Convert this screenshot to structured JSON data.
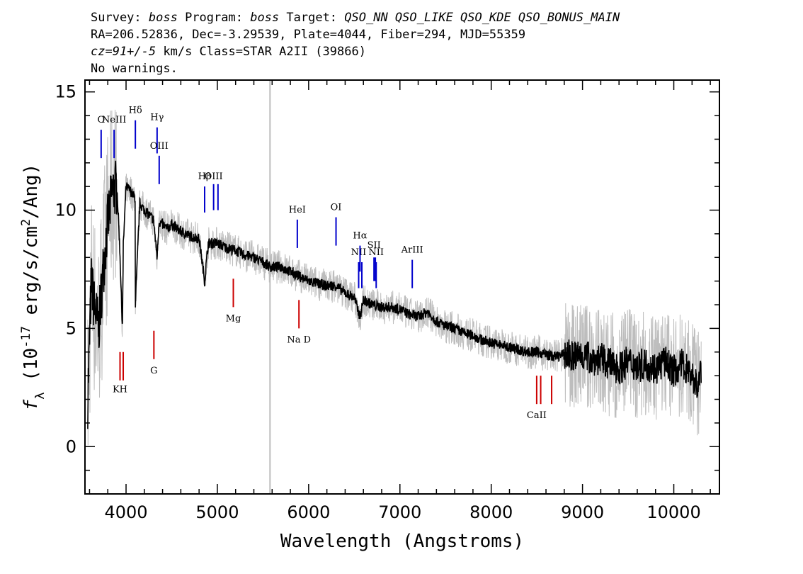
{
  "header": {
    "line1": [
      {
        "text": "Survey: ",
        "italic": false
      },
      {
        "text": "boss",
        "italic": true
      },
      {
        "text": " Program: ",
        "italic": false
      },
      {
        "text": "boss",
        "italic": true
      },
      {
        "text": " Target: ",
        "italic": false
      },
      {
        "text": "QSO_NN QSO_LIKE QSO_KDE QSO_BONUS_MAIN",
        "italic": true
      }
    ],
    "line2": "RA=206.52836, Dec=-3.29539, Plate=4044, Fiber=294, MJD=55359",
    "line3": [
      {
        "text": "cz=91+/-5",
        "italic": true
      },
      {
        "text": " km/s Class=STAR A2II (39866)",
        "italic": false
      }
    ],
    "line4": "No warnings."
  },
  "chart_data": {
    "type": "line",
    "xlabel": "Wavelength (Angstroms)",
    "ylabel_parts": [
      "f",
      "λ",
      " (10",
      "-17",
      " erg/s/cm",
      "2",
      "/Ang)"
    ],
    "xlim": [
      3550,
      10500
    ],
    "ylim": [
      -2,
      15.5
    ],
    "xticks_major": [
      4000,
      5000,
      6000,
      7000,
      8000,
      9000,
      10000
    ],
    "xtick_labels": [
      "4000",
      "5000",
      "6000",
      "7000",
      "8000",
      "9000",
      "10000"
    ],
    "yticks_major": [
      0,
      5,
      10,
      15
    ],
    "ytick_labels": [
      "0",
      "5",
      "10",
      "15"
    ],
    "vertical_marker_x": 5577,
    "colors": {
      "flux": "#000000",
      "error": "#bdbdbd",
      "emission": "#0000cc",
      "absorption": "#cc0000"
    },
    "flux_series": {
      "name": "flux",
      "x": [
        3580,
        3620,
        3650,
        3700,
        3750,
        3800,
        3850,
        3900,
        3930,
        3960,
        3970,
        4000,
        4050,
        4100,
        4102,
        4150,
        4200,
        4250,
        4300,
        4340,
        4360,
        4400,
        4450,
        4500,
        4600,
        4700,
        4800,
        4861,
        4900,
        5000,
        5100,
        5200,
        5300,
        5400,
        5500,
        5580,
        5700,
        5800,
        5900,
        6000,
        6100,
        6200,
        6300,
        6400,
        6500,
        6563,
        6600,
        6700,
        6800,
        6900,
        7000,
        7100,
        7200,
        7300,
        7400,
        7500,
        7600,
        7700,
        7800,
        7900,
        8000,
        8100,
        8200,
        8300,
        8400,
        8500,
        8600,
        8700,
        8800,
        8900,
        9000,
        9100,
        9200,
        9300,
        9400,
        9500,
        9600,
        9700,
        9800,
        9900,
        10000,
        10100,
        10200,
        10260,
        10300
      ],
      "y": [
        2.0,
        7.0,
        6.0,
        5.0,
        7.5,
        9.5,
        10.8,
        11.0,
        8.5,
        5.0,
        8.5,
        11.0,
        10.8,
        10.5,
        6.0,
        10.3,
        10.0,
        9.8,
        9.6,
        8.0,
        9.5,
        9.4,
        9.2,
        9.4,
        9.1,
        8.9,
        8.8,
        7.0,
        8.6,
        8.6,
        8.4,
        8.3,
        8.1,
        8.0,
        7.8,
        7.6,
        7.6,
        7.4,
        7.2,
        7.0,
        6.9,
        6.8,
        6.8,
        6.5,
        6.3,
        5.5,
        6.2,
        6.0,
        5.9,
        5.9,
        5.8,
        5.6,
        5.5,
        5.7,
        5.3,
        5.1,
        5.0,
        4.8,
        4.7,
        4.5,
        4.4,
        4.3,
        4.2,
        4.1,
        4.0,
        4.0,
        3.9,
        3.8,
        3.9,
        3.8,
        3.9,
        3.7,
        3.7,
        3.5,
        3.3,
        3.6,
        3.4,
        3.5,
        3.3,
        3.6,
        3.2,
        3.5,
        3.0,
        2.5,
        3.3
      ]
    },
    "emission_lines": [
      {
        "label": "O",
        "x": 3727,
        "y1": 12.2,
        "y2": 13.4,
        "label_y": 13.7
      },
      {
        "label": "NeIII",
        "x": 3869,
        "y1": 12.2,
        "y2": 13.4,
        "label_y": 13.7
      },
      {
        "label": "Hδ",
        "x": 4102,
        "y1": 12.6,
        "y2": 13.8,
        "label_y": 14.1
      },
      {
        "label": "Hγ",
        "x": 4340,
        "y1": 12.4,
        "y2": 13.5,
        "label_y": 13.8
      },
      {
        "label": "OIII",
        "x": 4363,
        "y1": 11.1,
        "y2": 12.3,
        "label_y": 12.6
      },
      {
        "label": "Hβ",
        "x": 4861,
        "y1": 9.9,
        "y2": 11.0,
        "label_y": 11.3
      },
      {
        "label": "OIII",
        "x": 4959,
        "y1": 10.0,
        "y2": 11.1,
        "label_y": 11.3
      },
      {
        "label": "",
        "x": 5007,
        "y1": 10.0,
        "y2": 11.1,
        "label_y": 11.3
      },
      {
        "label": "HeI",
        "x": 5876,
        "y1": 8.4,
        "y2": 9.6,
        "label_y": 9.9
      },
      {
        "label": "OI",
        "x": 6300,
        "y1": 8.5,
        "y2": 9.7,
        "label_y": 10.0
      },
      {
        "label": "NII",
        "x": 6548,
        "y1": 6.7,
        "y2": 7.8,
        "label_y": 8.1
      },
      {
        "label": "Hα",
        "x": 6563,
        "y1": 7.4,
        "y2": 8.5,
        "label_y": 8.8
      },
      {
        "label": "",
        "x": 6583,
        "y1": 6.7,
        "y2": 7.8,
        "label_y": 8.1
      },
      {
        "label": "SII",
        "x": 6716,
        "y1": 7.0,
        "y2": 8.0,
        "label_y": 8.4
      },
      {
        "label": "",
        "x": 6731,
        "y1": 7.0,
        "y2": 8.0,
        "label_y": 8.4
      },
      {
        "label": "NII",
        "x": 6740,
        "y1": 6.7,
        "y2": 7.8,
        "label_y": 8.1
      },
      {
        "label": "ArIII",
        "x": 7135,
        "y1": 6.7,
        "y2": 7.9,
        "label_y": 8.2
      }
    ],
    "absorption_lines": [
      {
        "label": "KH",
        "x": 3934,
        "y1": 2.8,
        "y2": 4.0,
        "label_y": 2.3
      },
      {
        "label": "",
        "x": 3969,
        "y1": 2.8,
        "y2": 4.0,
        "label_y": 2.3
      },
      {
        "label": "G",
        "x": 4305,
        "y1": 3.7,
        "y2": 4.9,
        "label_y": 3.1
      },
      {
        "label": "Mg",
        "x": 5175,
        "y1": 5.9,
        "y2": 7.1,
        "label_y": 5.3
      },
      {
        "label": "Na D",
        "x": 5894,
        "y1": 5.0,
        "y2": 6.2,
        "label_y": 4.4
      },
      {
        "label": "CaII",
        "x": 8498,
        "y1": 1.8,
        "y2": 3.0,
        "label_y": 1.2
      },
      {
        "label": "",
        "x": 8542,
        "y1": 1.8,
        "y2": 3.0,
        "label_y": 1.2
      },
      {
        "label": "",
        "x": 8662,
        "y1": 1.8,
        "y2": 3.0,
        "label_y": 1.2
      }
    ]
  }
}
